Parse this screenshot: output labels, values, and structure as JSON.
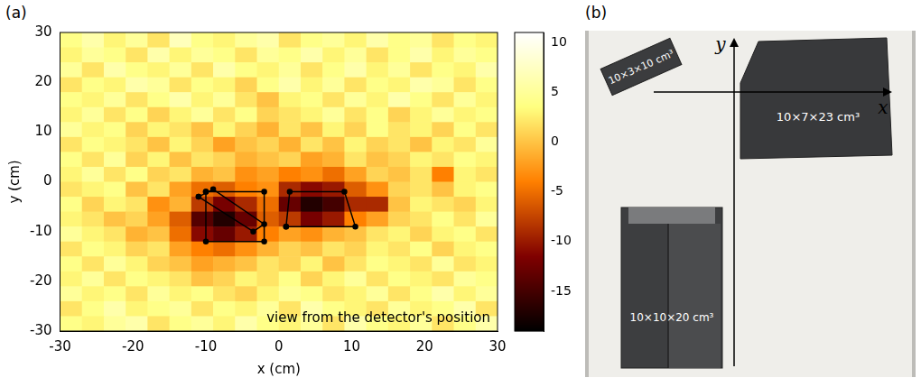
{
  "chart_data": {
    "type": "heatmap",
    "panel": "(a)",
    "xlabel": "x (cm)",
    "ylabel": "y (cm)",
    "xlim": [
      -30,
      30
    ],
    "ylim": [
      -30,
      30
    ],
    "xticks": [
      -30,
      -20,
      -10,
      0,
      10,
      20,
      30
    ],
    "yticks": [
      -30,
      -20,
      -10,
      0,
      10,
      20,
      30
    ],
    "grid": false,
    "annotation": "view from the detector's position",
    "cells": {
      "x_edges": [
        -30,
        -27,
        -24,
        -21,
        -18,
        -15,
        -12,
        -9,
        -6,
        -3,
        0,
        3,
        6,
        9,
        12,
        15,
        18,
        21,
        24,
        27,
        30
      ],
      "y_edges": [
        30,
        27,
        24,
        21,
        18,
        15,
        12,
        9,
        6,
        3,
        0,
        -3,
        -6,
        -9,
        -12,
        -15,
        -18,
        -21,
        -24,
        -27,
        -30
      ],
      "values": [
        [
          4,
          6,
          3,
          5,
          2,
          7,
          4,
          3,
          5,
          6,
          2,
          4,
          5,
          3,
          6,
          4,
          5,
          2,
          4,
          3
        ],
        [
          3,
          5,
          4,
          2,
          6,
          3,
          5,
          4,
          2,
          5,
          4,
          6,
          3,
          5,
          2,
          4,
          6,
          3,
          5,
          4
        ],
        [
          5,
          2,
          6,
          4,
          3,
          5,
          2,
          6,
          4,
          3,
          5,
          2,
          4,
          6,
          3,
          5,
          2,
          4,
          3,
          6
        ],
        [
          2,
          4,
          3,
          6,
          5,
          2,
          4,
          3,
          1,
          4,
          6,
          3,
          5,
          2,
          4,
          3,
          6,
          5,
          2,
          4
        ],
        [
          4,
          3,
          5,
          2,
          4,
          6,
          3,
          5,
          2,
          0,
          3,
          4,
          2,
          5,
          3,
          6,
          4,
          2,
          5,
          3
        ],
        [
          3,
          5,
          2,
          4,
          1,
          3,
          5,
          2,
          4,
          1,
          2,
          3,
          5,
          2,
          4,
          1,
          3,
          5,
          3,
          4
        ],
        [
          5,
          3,
          4,
          1,
          3,
          2,
          0,
          3,
          1,
          -1,
          2,
          0,
          3,
          1,
          4,
          2,
          3,
          1,
          4,
          2
        ],
        [
          2,
          4,
          3,
          2,
          0,
          3,
          1,
          -2,
          0,
          1,
          -1,
          2,
          0,
          3,
          1,
          2,
          0,
          3,
          2,
          5
        ],
        [
          4,
          2,
          5,
          1,
          3,
          0,
          2,
          1,
          -1,
          0,
          1,
          -2,
          -1,
          2,
          0,
          1,
          3,
          2,
          4,
          3
        ],
        [
          3,
          5,
          2,
          4,
          1,
          2,
          -1,
          0,
          -3,
          -2,
          -4,
          -3,
          -5,
          -2,
          1,
          0,
          2,
          -4,
          3,
          2
        ],
        [
          2,
          3,
          4,
          0,
          2,
          -2,
          -5,
          -6,
          -4,
          -3,
          -9,
          -11,
          -10,
          -6,
          -3,
          1,
          2,
          0,
          3,
          4
        ],
        [
          4,
          1,
          3,
          2,
          -3,
          -1,
          -8,
          -12,
          -9,
          -5,
          -13,
          -17,
          -15,
          -9,
          -9,
          0,
          3,
          2,
          1,
          3
        ],
        [
          3,
          2,
          0,
          1,
          -2,
          -6,
          -14,
          -17,
          -13,
          -6,
          -8,
          -12,
          -10,
          -4,
          -2,
          1,
          2,
          4,
          2,
          5
        ],
        [
          5,
          3,
          2,
          -1,
          0,
          -5,
          -11,
          -13,
          -10,
          -4,
          -2,
          -3,
          -1,
          0,
          2,
          3,
          1,
          3,
          4,
          2
        ],
        [
          2,
          4,
          3,
          1,
          2,
          -2,
          -4,
          -5,
          -3,
          -1,
          1,
          0,
          2,
          1,
          3,
          2,
          4,
          1,
          3,
          4
        ],
        [
          4,
          2,
          5,
          3,
          1,
          0,
          -2,
          -1,
          0,
          2,
          1,
          3,
          0,
          2,
          4,
          3,
          2,
          5,
          2,
          3
        ],
        [
          3,
          5,
          2,
          4,
          3,
          2,
          0,
          1,
          3,
          2,
          4,
          1,
          3,
          5,
          2,
          4,
          3,
          2,
          5,
          4
        ],
        [
          5,
          3,
          4,
          2,
          5,
          3,
          4,
          2,
          1,
          3,
          5,
          4,
          2,
          3,
          5,
          2,
          4,
          6,
          3,
          5
        ],
        [
          2,
          4,
          6,
          3,
          4,
          5,
          2,
          4,
          3,
          5,
          2,
          6,
          4,
          3,
          2,
          5,
          3,
          4,
          6,
          2
        ],
        [
          4,
          3,
          5,
          6,
          2,
          4,
          5,
          3,
          6,
          4,
          3,
          5,
          2,
          6,
          4,
          3,
          5,
          2,
          4,
          6
        ]
      ]
    },
    "colorbar": {
      "range": [
        -19,
        11
      ],
      "ticks": [
        -15,
        -10,
        -5,
        0,
        5,
        10
      ]
    },
    "outlines": [
      [
        [
          -11,
          -3
        ],
        [
          -9,
          -1.5
        ],
        [
          -2,
          -8.5
        ],
        [
          -3.5,
          -10
        ]
      ],
      [
        [
          1,
          -9
        ],
        [
          1.5,
          -2
        ],
        [
          9,
          -2
        ],
        [
          10.5,
          -9
        ]
      ],
      [
        [
          -10,
          -2
        ],
        [
          -2,
          -2
        ],
        [
          -2,
          -12
        ],
        [
          -10,
          -12
        ]
      ]
    ],
    "color": "#000000"
  },
  "photo": {
    "panel": "(b)",
    "axis_labels": {
      "x": "x",
      "y": "y"
    },
    "block_labels": [
      "10×3×10 cm³",
      "10×7×23 cm³",
      "10×10×20 cm³"
    ]
  }
}
